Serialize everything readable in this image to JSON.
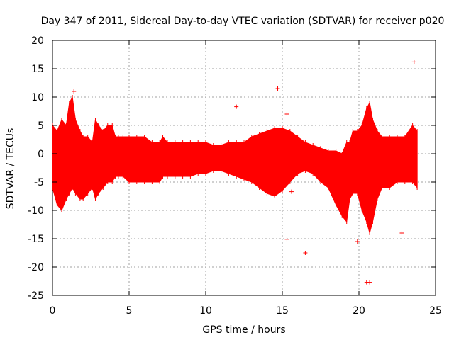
{
  "chart_data": {
    "type": "scatter",
    "title": "Day 347 of 2011, Sidereal Day-to-day VTEC variation (SDTVAR) for receiver p020",
    "xlabel": "GPS time / hours",
    "ylabel": "SDTVAR / TECUs",
    "xlim": [
      0,
      25
    ],
    "ylim": [
      -25,
      20
    ],
    "xticks": [
      0,
      5,
      10,
      15,
      20,
      25
    ],
    "yticks": [
      -25,
      -20,
      -15,
      -10,
      -5,
      0,
      5,
      10,
      15,
      20
    ],
    "grid": true,
    "legend": "none",
    "marker": "+",
    "series_color": "#ff0000",
    "envelope": {
      "x": [
        0.0,
        0.3,
        0.6,
        0.9,
        1.1,
        1.3,
        1.5,
        1.8,
        2.0,
        2.3,
        2.6,
        2.8,
        3.0,
        3.3,
        3.6,
        3.9,
        4.1,
        4.3,
        4.6,
        5.0,
        5.5,
        6.0,
        6.5,
        7.0,
        7.2,
        7.5,
        8.0,
        8.5,
        9.0,
        9.5,
        10.0,
        10.5,
        11.0,
        11.5,
        12.0,
        12.5,
        13.0,
        13.5,
        14.0,
        14.5,
        15.0,
        15.5,
        16.0,
        16.5,
        17.0,
        17.5,
        18.0,
        18.5,
        18.9,
        19.2,
        19.4,
        19.6,
        19.9,
        20.2,
        20.5,
        20.7,
        20.9,
        21.2,
        21.5,
        22.0,
        22.5,
        23.0,
        23.5,
        23.8
      ],
      "upper": [
        5,
        4,
        6,
        5,
        9,
        10,
        6,
        4,
        3,
        3,
        2,
        6,
        5,
        4,
        5,
        5,
        3,
        3,
        3,
        3,
        3,
        3,
        2,
        2,
        3,
        2,
        2,
        2,
        2,
        2,
        2,
        1.5,
        1.5,
        2,
        2,
        2,
        3,
        3.5,
        4,
        4.5,
        4.5,
        4,
        3,
        2,
        1.5,
        1,
        0.5,
        0.5,
        0,
        2,
        2,
        4,
        4,
        5,
        8,
        9,
        6,
        4,
        3,
        3,
        3,
        3,
        5,
        4
      ],
      "lower": [
        -6,
        -9,
        -10,
        -8,
        -7,
        -6,
        -7,
        -8,
        -8,
        -7,
        -6,
        -8,
        -7,
        -6,
        -5,
        -5,
        -4,
        -4,
        -4,
        -5,
        -5,
        -5,
        -5,
        -5,
        -4,
        -4,
        -4,
        -4,
        -4,
        -3.5,
        -3.5,
        -3,
        -3,
        -3.5,
        -4,
        -4.5,
        -5,
        -6,
        -7,
        -7.5,
        -6.5,
        -5,
        -3.5,
        -3,
        -3.5,
        -5,
        -6,
        -9,
        -11,
        -12,
        -8,
        -7,
        -7,
        -10,
        -12,
        -14,
        -12,
        -8,
        -6,
        -6,
        -5,
        -5,
        -5,
        -6
      ]
    },
    "outliers": {
      "x": [
        14.7,
        12.0,
        15.3,
        15.3,
        16.5,
        23.6,
        22.8,
        20.5,
        20.7,
        19.9,
        1.4,
        15.6
      ],
      "y": [
        11.5,
        8.3,
        7.0,
        -15.1,
        -17.5,
        16.2,
        -14.0,
        -22.7,
        -22.7,
        -15.5,
        11.0,
        -6.7
      ]
    }
  }
}
